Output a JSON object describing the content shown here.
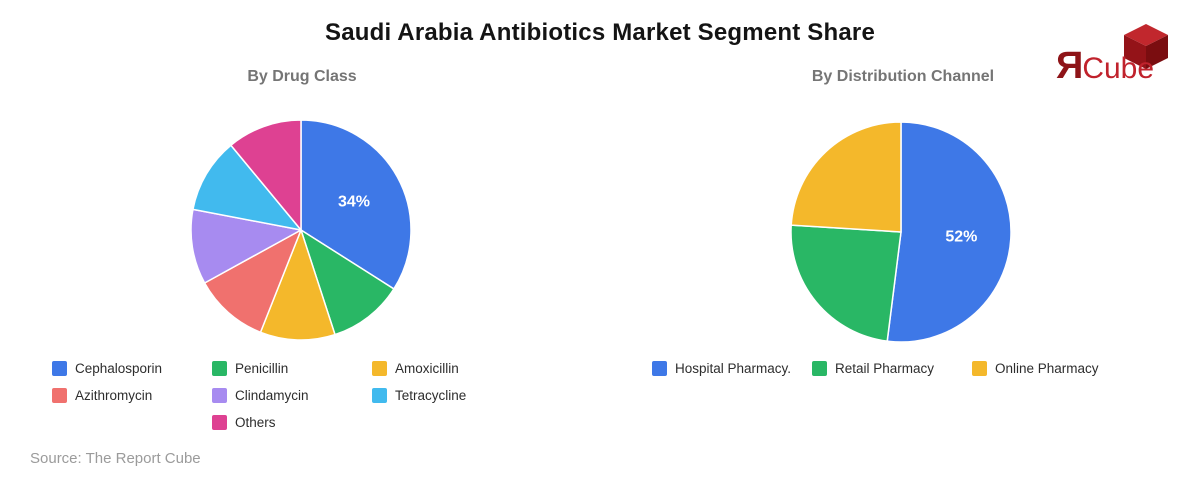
{
  "title": "Saudi Arabia Antibiotics Market Segment Share",
  "source": "Source: The Report Cube",
  "logo": {
    "mark": "Я",
    "name": "Cube",
    "mark_color": "#8E1418",
    "name_color": "#C0222C",
    "cube_top_color": "#C1272D",
    "cube_left_color": "#941318",
    "cube_right_color": "#7A0D10"
  },
  "chart_data": [
    {
      "type": "pie",
      "title": "By Drug Class",
      "categories": [
        "Cephalosporin",
        "Penicillin",
        "Amoxicillin",
        "Azithromycin",
        "Clindamycin",
        "Tetracycline",
        "Others"
      ],
      "values": [
        34,
        11,
        11,
        11,
        11,
        11,
        11
      ],
      "colors": [
        "#3E78E7",
        "#29B765",
        "#F4B82B",
        "#F0716E",
        "#A78BF0",
        "#41BAEE",
        "#DE4192"
      ],
      "slice_labels": [
        "34%",
        "",
        "",
        "",
        "",
        "",
        ""
      ],
      "start_angle_deg": 0,
      "direction": "clockwise",
      "legend_position": "bottom"
    },
    {
      "type": "pie",
      "title": "By Distribution Channel",
      "categories": [
        "Hospital Pharmacy.",
        "Retail Pharmacy",
        "Online Pharmacy"
      ],
      "values": [
        52,
        24,
        24
      ],
      "colors": [
        "#3E78E7",
        "#29B765",
        "#F4B82B"
      ],
      "slice_labels": [
        "52%",
        "",
        ""
      ],
      "start_angle_deg": 0,
      "direction": "clockwise",
      "legend_position": "bottom"
    }
  ]
}
